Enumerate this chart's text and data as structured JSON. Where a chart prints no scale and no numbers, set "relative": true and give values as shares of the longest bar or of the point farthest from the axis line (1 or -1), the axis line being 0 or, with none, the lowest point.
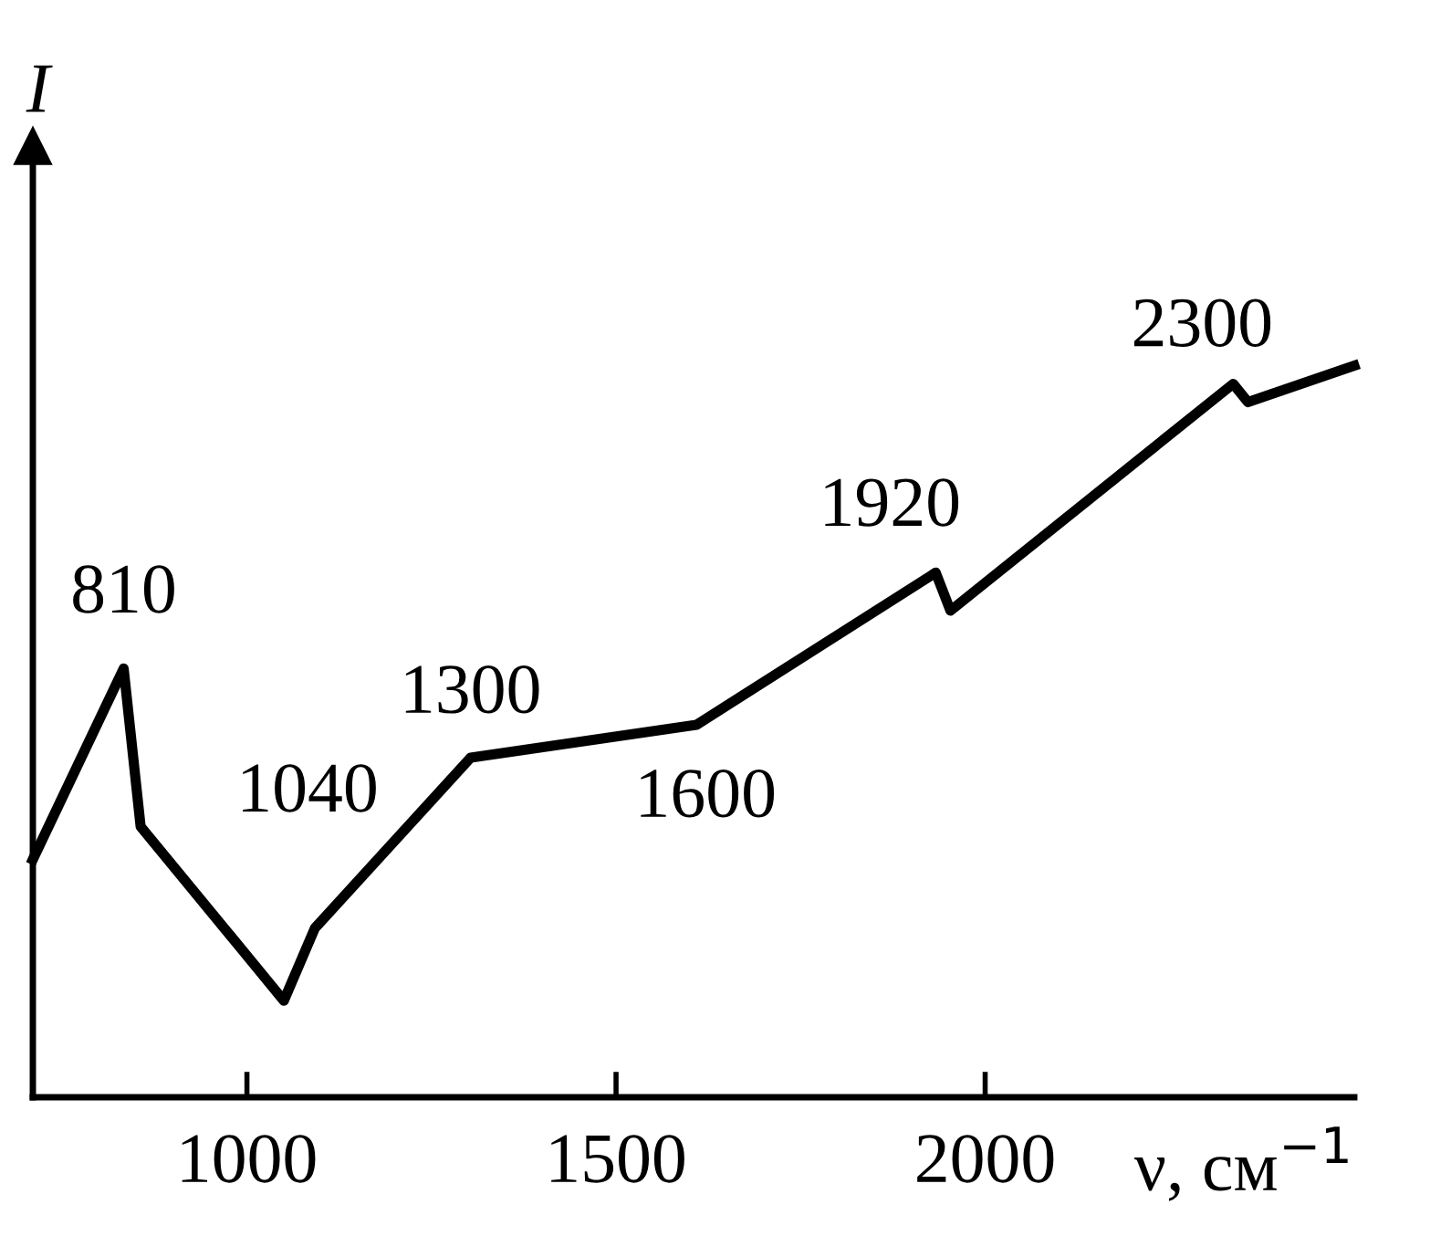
{
  "chart_data": {
    "type": "line",
    "relative": true,
    "ylabel": "I",
    "xlabel": "ν, см$^{−1}$",
    "x": [
      710,
      833,
      856,
      1050,
      1092,
      1303,
      1609,
      1933,
      1953,
      2336,
      2356,
      2500
    ],
    "values": [
      0.325,
      0.586,
      0.37,
      0.132,
      0.231,
      0.464,
      0.509,
      0.717,
      0.665,
      0.975,
      0.95,
      1.0
    ],
    "color": "#000000",
    "xlim": [
      710,
      2500
    ],
    "xticks": [
      1000,
      1500,
      2000
    ],
    "grid": false,
    "marker": "none",
    "line_style": "solid",
    "annotations": [
      {
        "text": "810",
        "x": 833,
        "y": 0.586
      },
      {
        "text": "1040",
        "x": 1050,
        "y": 0.132
      },
      {
        "text": "1300",
        "x": 1303,
        "y": 0.464
      },
      {
        "text": "1600",
        "x": 1609,
        "y": 0.509
      },
      {
        "text": "1920",
        "x": 1933,
        "y": 0.717
      },
      {
        "text": "2300",
        "x": 2336,
        "y": 0.975
      }
    ]
  }
}
